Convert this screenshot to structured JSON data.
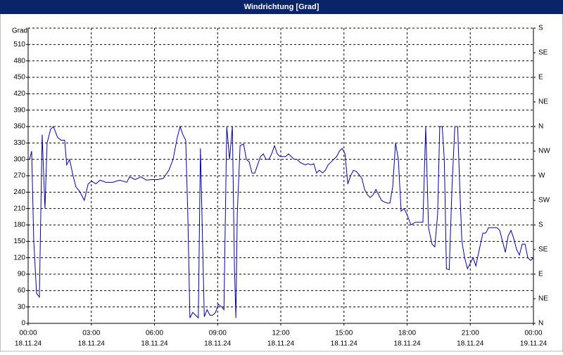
{
  "chart_data": {
    "type": "line",
    "title": "Windrichtung [Grad]",
    "y_label": "Grad",
    "color": "#0000b0",
    "grid": true,
    "xlim": [
      0,
      1440
    ],
    "xticks": [
      {
        "value": 0,
        "label": "00:00"
      },
      {
        "value": 180,
        "label": "03:00"
      },
      {
        "value": 360,
        "label": "06:00"
      },
      {
        "value": 540,
        "label": "09:00"
      },
      {
        "value": 720,
        "label": "12:00"
      },
      {
        "value": 900,
        "label": "15:00"
      },
      {
        "value": 1080,
        "label": "18:00"
      },
      {
        "value": 1260,
        "label": "21:00"
      },
      {
        "value": 1440,
        "label": "00:00"
      }
    ],
    "xtick_dates": [
      "18.11.24",
      "18.11.24",
      "18.11.24",
      "18.11.24",
      "18.11.24",
      "18.11.24",
      "18.11.24",
      "18.11.24",
      "19.11.24"
    ],
    "ylim": [
      0,
      540
    ],
    "yticks": [
      0,
      30,
      60,
      90,
      120,
      150,
      180,
      210,
      240,
      270,
      300,
      330,
      360,
      390,
      420,
      450,
      480,
      510
    ],
    "y2lim": [
      0,
      540
    ],
    "y2ticks": [
      {
        "value": 0,
        "label": "N"
      },
      {
        "value": 45,
        "label": "NE"
      },
      {
        "value": 90,
        "label": "E"
      },
      {
        "value": 135,
        "label": "SE"
      },
      {
        "value": 180,
        "label": "S"
      },
      {
        "value": 225,
        "label": "SW"
      },
      {
        "value": 270,
        "label": "W"
      },
      {
        "value": 315,
        "label": "NW"
      },
      {
        "value": 360,
        "label": "N"
      },
      {
        "value": 405,
        "label": "NE"
      },
      {
        "value": 450,
        "label": "E"
      },
      {
        "value": 495,
        "label": "SE"
      },
      {
        "value": 540,
        "label": "S"
      }
    ],
    "x": [
      4,
      10,
      16,
      24,
      32,
      36,
      40,
      48,
      54,
      64,
      72,
      84,
      94,
      104,
      110,
      118,
      128,
      136,
      148,
      160,
      171,
      181,
      193,
      205,
      221,
      241,
      261,
      281,
      289,
      305,
      321,
      337,
      353,
      369,
      385,
      401,
      413,
      425,
      433,
      441,
      449,
      455,
      461,
      469,
      477,
      485,
      491,
      502,
      510,
      518,
      526,
      534,
      542,
      552,
      558,
      566,
      574,
      582,
      588,
      592,
      596,
      604,
      614,
      622,
      630,
      638,
      646,
      654,
      662,
      670,
      678,
      686,
      694,
      702,
      710,
      718,
      726,
      734,
      742,
      750,
      758,
      766,
      774,
      782,
      790,
      798,
      806,
      814,
      822,
      830,
      839,
      847,
      855,
      863,
      871,
      879,
      887,
      895,
      903,
      911,
      919,
      927,
      935,
      943,
      951,
      959,
      967,
      975,
      983,
      991,
      999,
      1007,
      1015,
      1023,
      1031,
      1039,
      1047,
      1055,
      1063,
      1071,
      1079,
      1091,
      1103,
      1111,
      1119,
      1125,
      1133,
      1141,
      1151,
      1159,
      1167,
      1173,
      1180,
      1186,
      1192,
      1200,
      1208,
      1216,
      1224,
      1230,
      1236,
      1244,
      1252,
      1260,
      1268,
      1276,
      1284,
      1296,
      1304,
      1312,
      1320,
      1328,
      1336,
      1344,
      1352,
      1360,
      1368,
      1376,
      1384,
      1392,
      1400,
      1408,
      1416,
      1424,
      1432,
      1440
    ],
    "values": [
      300,
      315,
      150,
      55,
      48,
      200,
      345,
      210,
      330,
      355,
      360,
      340,
      335,
      335,
      290,
      300,
      270,
      250,
      240,
      225,
      255,
      260,
      255,
      262,
      258,
      258,
      262,
      258,
      268,
      263,
      268,
      262,
      263,
      263,
      265,
      280,
      300,
      340,
      360,
      345,
      335,
      200,
      10,
      20,
      15,
      10,
      320,
      12,
      25,
      15,
      15,
      20,
      35,
      30,
      25,
      360,
      300,
      360,
      100,
      10,
      200,
      325,
      328,
      300,
      295,
      275,
      275,
      290,
      305,
      310,
      300,
      300,
      310,
      325,
      310,
      305,
      305,
      305,
      310,
      305,
      300,
      300,
      295,
      292,
      290,
      292,
      290,
      292,
      275,
      280,
      275,
      280,
      290,
      295,
      300,
      305,
      315,
      320,
      310,
      255,
      270,
      280,
      278,
      272,
      265,
      245,
      235,
      230,
      235,
      245,
      235,
      225,
      222,
      220,
      220,
      250,
      330,
      300,
      205,
      210,
      200,
      180,
      185,
      185,
      185,
      185,
      360,
      175,
      145,
      140,
      200,
      360,
      360,
      300,
      100,
      98,
      250,
      360,
      360,
      250,
      150,
      120,
      100,
      110,
      120,
      105,
      130,
      165,
      165,
      175,
      175,
      175,
      175,
      170,
      150,
      130,
      160,
      170,
      155,
      135,
      125,
      145,
      145,
      120,
      115,
      120
    ]
  }
}
